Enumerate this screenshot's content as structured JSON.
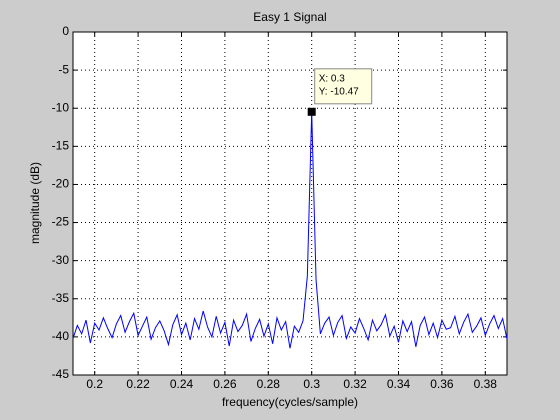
{
  "chart_data": {
    "type": "line",
    "title": "Easy 1 Signal",
    "x_label": "frequency(cycles/sample)",
    "y_label": "magnitude (dB)",
    "x": [
      0.19,
      0.192,
      0.194,
      0.196,
      0.198,
      0.2,
      0.202,
      0.204,
      0.206,
      0.208,
      0.21,
      0.212,
      0.214,
      0.216,
      0.218,
      0.22,
      0.222,
      0.224,
      0.226,
      0.228,
      0.23,
      0.232,
      0.234,
      0.236,
      0.238,
      0.24,
      0.242,
      0.244,
      0.246,
      0.248,
      0.25,
      0.252,
      0.254,
      0.256,
      0.258,
      0.26,
      0.262,
      0.264,
      0.266,
      0.268,
      0.27,
      0.272,
      0.274,
      0.276,
      0.278,
      0.28,
      0.282,
      0.284,
      0.286,
      0.288,
      0.29,
      0.292,
      0.294,
      0.296,
      0.298,
      0.3,
      0.302,
      0.304,
      0.306,
      0.308,
      0.31,
      0.312,
      0.314,
      0.316,
      0.318,
      0.32,
      0.322,
      0.324,
      0.326,
      0.328,
      0.33,
      0.332,
      0.334,
      0.336,
      0.338,
      0.34,
      0.342,
      0.344,
      0.346,
      0.348,
      0.35,
      0.352,
      0.354,
      0.356,
      0.358,
      0.36,
      0.362,
      0.364,
      0.366,
      0.368,
      0.37,
      0.372,
      0.374,
      0.376,
      0.378,
      0.38,
      0.382,
      0.384,
      0.386,
      0.388,
      0.39
    ],
    "series": [
      {
        "color": "#0000ff",
        "values": [
          -40.2,
          -38.5,
          -39.6,
          -37.8,
          -40.8,
          -38.2,
          -39.1,
          -37.5,
          -38.9,
          -40.1,
          -38.3,
          -37.2,
          -39.4,
          -38.0,
          -36.9,
          -39.8,
          -38.6,
          -37.4,
          -40.3,
          -38.8,
          -37.9,
          -39.2,
          -41.0,
          -38.4,
          -37.1,
          -39.7,
          -38.2,
          -40.4,
          -37.6,
          -39.0,
          -36.6,
          -38.7,
          -40.0,
          -37.3,
          -39.5,
          -38.1,
          -41.2,
          -37.8,
          -39.3,
          -38.5,
          -37.0,
          -40.6,
          -38.9,
          -37.7,
          -39.9,
          -38.3,
          -40.9,
          -37.5,
          -39.1,
          -38.0,
          -41.5,
          -38.6,
          -39.4,
          -37.9,
          -32.0,
          -10.47,
          -32.5,
          -39.6,
          -38.2,
          -37.4,
          -39.8,
          -38.1,
          -37.2,
          -40.2,
          -38.7,
          -39.5,
          -37.6,
          -38.9,
          -40.4,
          -37.8,
          -39.2,
          -38.4,
          -37.1,
          -39.9,
          -38.6,
          -40.7,
          -37.9,
          -39.3,
          -38.0,
          -41.3,
          -38.5,
          -37.4,
          -39.7,
          -38.2,
          -40.1,
          -37.8,
          -39.0,
          -38.8,
          -37.3,
          -39.6,
          -38.1,
          -37.0,
          -39.4,
          -38.6,
          -37.5,
          -39.8,
          -38.3,
          -37.2,
          -38.9,
          -37.6,
          -40.3
        ]
      }
    ],
    "xlim": [
      0.19,
      0.39
    ],
    "xticks": [
      0.2,
      0.22,
      0.24,
      0.26,
      0.28,
      0.3,
      0.32,
      0.34,
      0.36,
      0.38
    ],
    "ylim": [
      -45,
      0
    ],
    "yticks": [
      -45,
      -40,
      -35,
      -30,
      -25,
      -20,
      -15,
      -10,
      -5,
      0
    ],
    "grid": true,
    "annotations": [
      "X: 0.3",
      "Y: -10.47"
    ]
  }
}
